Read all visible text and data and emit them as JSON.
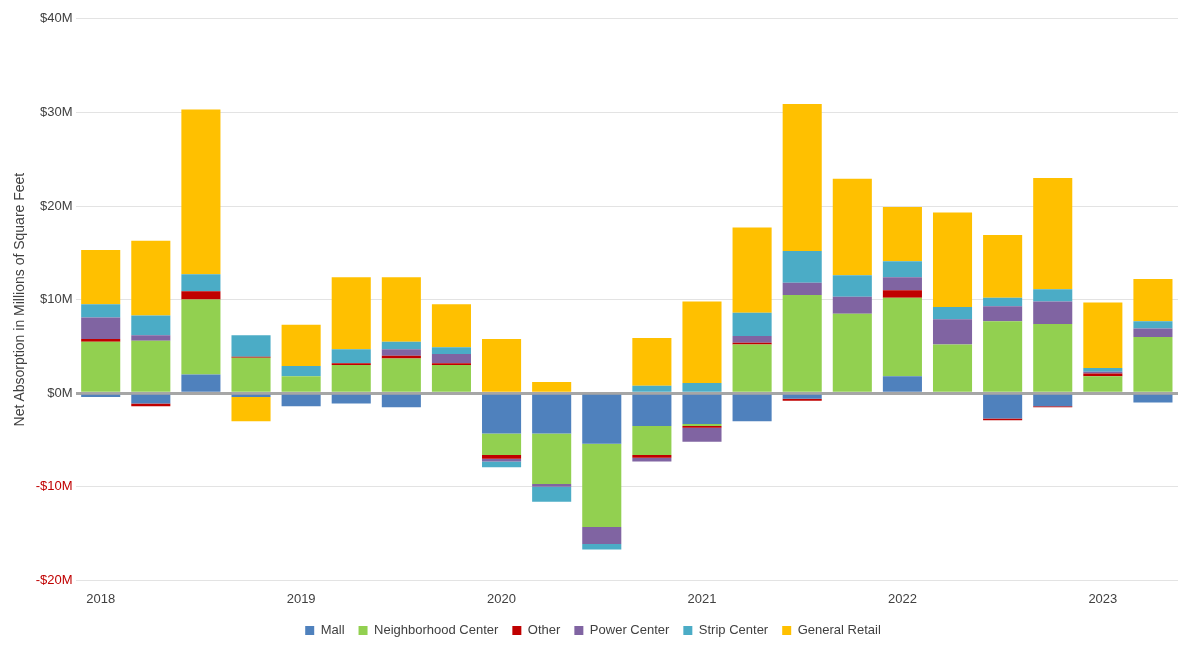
{
  "chart_data": {
    "type": "bar",
    "stacked": true,
    "ylabel": "Net Absorption in Millions of Square Feet",
    "categories": [
      "2018",
      null,
      null,
      null,
      "2019",
      null,
      null,
      null,
      "2020",
      null,
      null,
      null,
      "2021",
      null,
      null,
      null,
      "2022",
      null,
      null,
      null,
      "2023",
      null
    ],
    "series": [
      {
        "name": "Mall",
        "color": "#4f81bd",
        "values": [
          -0.4,
          -1.1,
          2.0,
          -0.4,
          -1.4,
          -1.1,
          -1.5,
          0,
          -4.3,
          -4.3,
          -5.4,
          -3.5,
          -3.3,
          -3.0,
          -0.6,
          null,
          1.8,
          0,
          -2.7,
          -1.4,
          0,
          -1.0
        ]
      },
      {
        "name": "Neighborhood Center",
        "color": "#92d050",
        "values": [
          5.5,
          5.6,
          8.0,
          3.8,
          1.8,
          3.0,
          3.7,
          3.0,
          -2.3,
          -5.4,
          -8.9,
          -3.1,
          -0.2,
          5.2,
          10.5,
          8.5,
          8.4,
          5.2,
          7.7,
          7.4,
          1.8,
          6.0
        ]
      },
      {
        "name": "Other",
        "color": "#c00000",
        "values": [
          0.3,
          -0.3,
          0.9,
          0.1,
          0,
          0.2,
          0.3,
          0.2,
          -0.4,
          0,
          0,
          -0.3,
          -0.2,
          0.2,
          -0.2,
          0,
          0.8,
          0,
          -0.2,
          -0.1,
          0.3,
          0
        ]
      },
      {
        "name": "Power Center",
        "color": "#8064a2",
        "values": [
          2.3,
          0.6,
          0,
          0,
          0,
          0,
          0.7,
          1.0,
          -0.3,
          -0.3,
          -1.8,
          -0.4,
          -1.5,
          0.7,
          1.3,
          1.8,
          1.4,
          2.7,
          1.6,
          2.4,
          0.2,
          0.9
        ]
      },
      {
        "name": "Strip Center",
        "color": "#4bacc6",
        "values": [
          1.4,
          2.1,
          1.8,
          2.3,
          1.1,
          1.5,
          0.8,
          0.7,
          -0.6,
          -1.6,
          -0.6,
          0.8,
          1.1,
          2.5,
          3.4,
          2.3,
          1.7,
          1.3,
          0.9,
          1.3,
          0.4,
          0.8
        ]
      },
      {
        "name": "General Retail",
        "color": "#ffc000",
        "values": [
          5.8,
          8.0,
          17.6,
          -2.6,
          4.4,
          7.7,
          6.9,
          4.6,
          5.8,
          1.2,
          0,
          5.1,
          8.7,
          9.1,
          15.7,
          10.3,
          5.8,
          10.1,
          6.7,
          11.9,
          7.0,
          4.5
        ]
      }
    ],
    "ylim": [
      -20,
      40
    ],
    "yticks": [
      {
        "value": -20,
        "label": "-$20M"
      },
      {
        "value": -10,
        "label": "-$10M"
      },
      {
        "value": 0,
        "label": "$0M"
      },
      {
        "value": 10,
        "label": "$10M"
      },
      {
        "value": 20,
        "label": "$20M"
      },
      {
        "value": 30,
        "label": "$30M"
      },
      {
        "value": 40,
        "label": "$40M"
      }
    ],
    "grid": "y",
    "legend": "bottom"
  }
}
